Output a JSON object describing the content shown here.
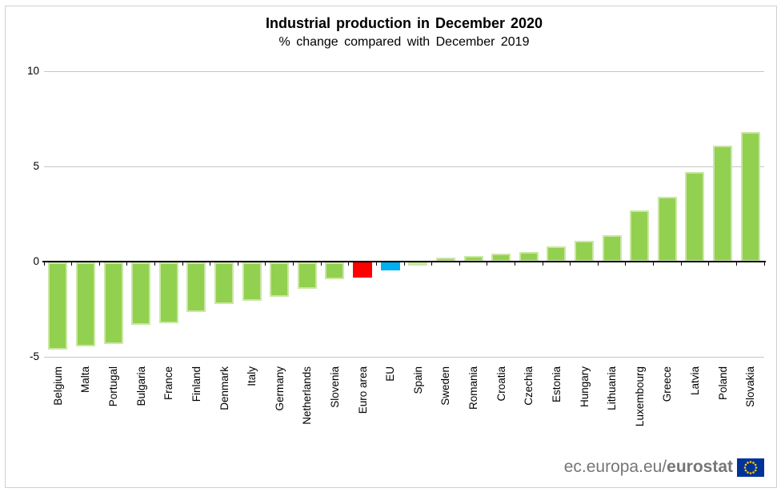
{
  "chart_data": {
    "type": "bar",
    "title": "Industrial production in December 2020",
    "subtitle": "% change compared with December 2019",
    "unit": "%",
    "categories": [
      "Belgium",
      "Malta",
      "Portugal",
      "Bulgaria",
      "France",
      "Finland",
      "Denmark",
      "Italy",
      "Germany",
      "Netherlands",
      "Slovenia",
      "Euro area",
      "EU",
      "Spain",
      "Sweden",
      "Romania",
      "Croatia",
      "Czechia",
      "Estonia",
      "Hungary",
      "Lithuania",
      "Luxembourg",
      "Greece",
      "Latvia",
      "Poland",
      "Slovakia"
    ],
    "values": [
      -4.6,
      -4.4,
      -4.3,
      -3.3,
      -3.2,
      -2.6,
      -2.2,
      -2.0,
      -1.8,
      -1.4,
      -0.9,
      -0.8,
      -0.4,
      -0.1,
      0.2,
      0.3,
      0.4,
      0.5,
      0.8,
      1.1,
      1.4,
      2.7,
      3.4,
      4.7,
      6.1,
      6.8
    ],
    "bar_color_overrides": {
      "Euro area": "#FF0000",
      "EU": "#00B0F0"
    },
    "ylim": [
      -5,
      10
    ],
    "yticks": [
      10,
      5,
      0,
      -5
    ],
    "grid": "horizontal",
    "legend": "none"
  },
  "colors": {
    "bar_green": "#92D050",
    "bar_green_edge": "#cbe7a4",
    "euro_area_red": "#FF0000",
    "eu_blue": "#00B0F0",
    "gridline": "#c6c6c6",
    "axis": "#000000",
    "footer_text": "#767676",
    "flag_blue": "#003399",
    "flag_stars": "#FFCC00"
  },
  "footer": {
    "url_regular": "ec.europa.eu/",
    "url_bold": "eurostat",
    "flag_icon": "eu-flag"
  }
}
